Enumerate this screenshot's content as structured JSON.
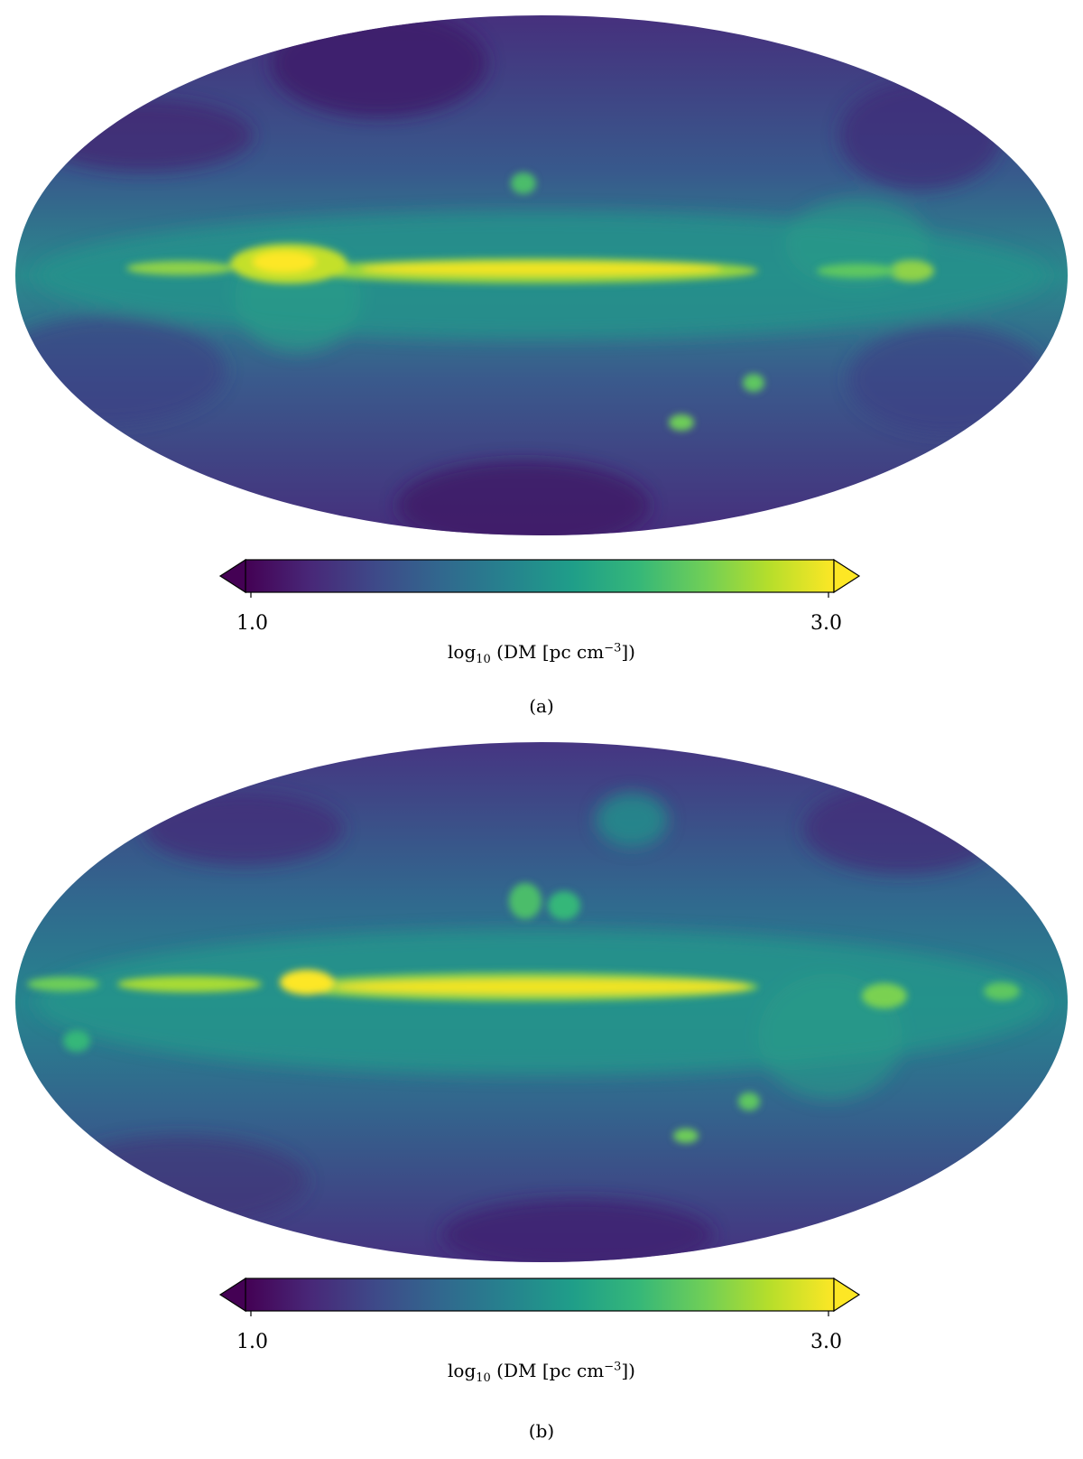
{
  "colors": {
    "viridis": [
      "#440154",
      "#482878",
      "#3e4a89",
      "#31688e",
      "#26828e",
      "#1f9e89",
      "#35b779",
      "#6ece58",
      "#b5de2b",
      "#fde725"
    ]
  },
  "chart_data": [
    {
      "type": "heatmap",
      "projection": "mollweide",
      "caption": "(a)",
      "colorbar": {
        "min": 1.0,
        "max": 3.0,
        "tick_labels": [
          "1.0",
          "3.0"
        ],
        "label_main": "log",
        "label_sub": "10",
        "label_text": "(DM [pc cm",
        "label_sup": "−3",
        "label_end": "])",
        "extend": "both",
        "colormap": "viridis"
      },
      "features": {
        "background_level": 1.55,
        "plane_peak_level": 2.95,
        "bright_clumps": 3
      }
    },
    {
      "type": "heatmap",
      "projection": "mollweide",
      "caption": "(b)",
      "colorbar": {
        "min": 1.0,
        "max": 3.0,
        "tick_labels": [
          "1.0",
          "3.0"
        ],
        "label_main": "log",
        "label_sub": "10",
        "label_text": "(DM [pc cm",
        "label_sup": "−3",
        "label_end": "])",
        "extend": "both",
        "colormap": "viridis"
      },
      "features": {
        "background_level": 1.7,
        "plane_peak_level": 2.95,
        "bright_clumps": 5
      }
    }
  ]
}
